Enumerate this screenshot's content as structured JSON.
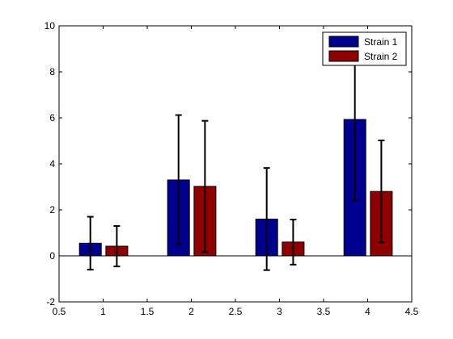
{
  "chart_data": {
    "type": "bar",
    "title": "",
    "xlabel": "",
    "ylabel": "",
    "x": [
      1,
      2,
      3,
      4
    ],
    "xlim": [
      0.5,
      4.5
    ],
    "ylim": [
      -2,
      10
    ],
    "xticks": [
      0.5,
      1,
      1.5,
      2,
      2.5,
      3,
      3.5,
      4,
      4.5
    ],
    "xtick_labels": [
      "0.5",
      "1",
      "1.5",
      "2",
      "2.5",
      "3",
      "3.5",
      "4",
      "4.5"
    ],
    "yticks": [
      -2,
      0,
      2,
      4,
      6,
      8,
      10
    ],
    "ytick_labels": [
      "-2",
      "0",
      "2",
      "4",
      "6",
      "8",
      "10"
    ],
    "grid": false,
    "legend_position": "top-right",
    "series": [
      {
        "name": "Strain 1",
        "color": "#00008f",
        "values": [
          0.55,
          3.3,
          1.6,
          5.93
        ],
        "error": [
          1.15,
          2.82,
          2.22,
          3.52
        ]
      },
      {
        "name": "Strain 2",
        "color": "#8f0000",
        "values": [
          0.42,
          3.02,
          0.6,
          2.8
        ],
        "error": [
          0.88,
          2.85,
          0.98,
          2.22
        ]
      }
    ]
  }
}
